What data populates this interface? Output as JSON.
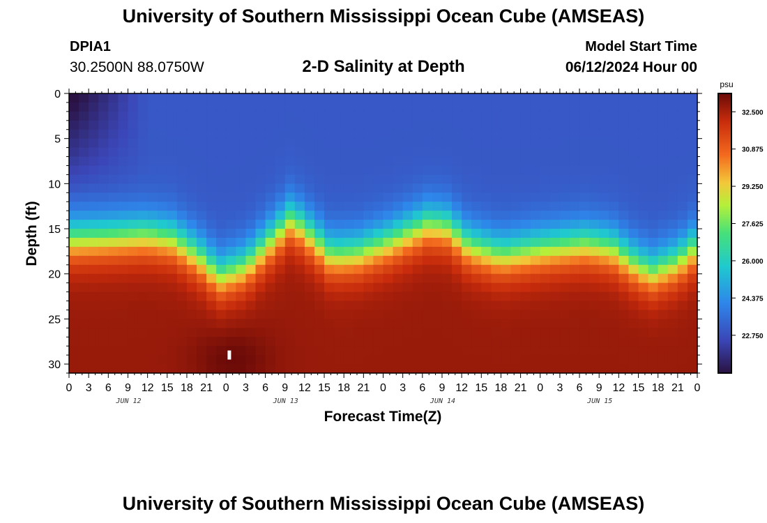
{
  "header": {
    "title": "University of Southern Mississippi Ocean Cube (AMSEAS)",
    "station_id": "DPIA1",
    "station_coords": "30.2500N  88.0750W",
    "plot_title": "2-D Salinity at Depth",
    "start_label": "Model Start Time",
    "start_value": "06/12/2024 Hour 00"
  },
  "footer": {
    "title": "University of Southern Mississippi Ocean Cube (AMSEAS)"
  },
  "chart_data": {
    "type": "heatmap",
    "title": "2-D Salinity at Depth",
    "xlabel": "Forecast Time(Z)",
    "ylabel": "Depth (ft)",
    "x_ticks": [
      "0",
      "3",
      "6",
      "9",
      "12",
      "15",
      "18",
      "21",
      "0",
      "3",
      "6",
      "9",
      "12",
      "15",
      "18",
      "21",
      "0",
      "3",
      "6",
      "9",
      "12",
      "15",
      "18",
      "21",
      "0",
      "3",
      "6",
      "9",
      "12",
      "15",
      "18",
      "21",
      "0"
    ],
    "x_range_hours": [
      0,
      96
    ],
    "day_labels": [
      {
        "label": "JUN 12",
        "hour": 9
      },
      {
        "label": "JUN 13",
        "hour": 33
      },
      {
        "label": "JUN 14",
        "hour": 57
      },
      {
        "label": "JUN 15",
        "hour": 81
      }
    ],
    "y_ticks": [
      0,
      5,
      10,
      15,
      20,
      25,
      30
    ],
    "y_range_ft": [
      0,
      31
    ],
    "colorbar": {
      "unit": "psu",
      "ticks": [
        "32.500",
        "30.875",
        "29.250",
        "27.625",
        "26.000",
        "24.375",
        "22.750"
      ],
      "range": [
        21.1,
        33.3
      ]
    },
    "surface_salinity_psu": 23.0,
    "bottom_salinity_psu": 32.7,
    "halocline_depth_ft": [
      [
        0,
        15.5
      ],
      [
        6,
        15.3
      ],
      [
        12,
        15.0
      ],
      [
        16,
        15.5
      ],
      [
        20,
        17.5
      ],
      [
        23,
        19.6
      ],
      [
        27,
        18.5
      ],
      [
        31,
        15.5
      ],
      [
        34,
        13.2
      ],
      [
        37,
        15.2
      ],
      [
        40,
        17.3
      ],
      [
        44,
        17.1
      ],
      [
        49,
        15.8
      ],
      [
        55,
        13.8
      ],
      [
        58,
        14.2
      ],
      [
        61,
        16.2
      ],
      [
        66,
        17.3
      ],
      [
        72,
        16.6
      ],
      [
        79,
        16.0
      ],
      [
        83,
        16.5
      ],
      [
        86,
        18.0
      ],
      [
        89,
        19.2
      ],
      [
        93,
        18.0
      ],
      [
        96,
        16.2
      ]
    ],
    "marker": {
      "hour": 24.5,
      "depth_ft": 29.0
    }
  }
}
